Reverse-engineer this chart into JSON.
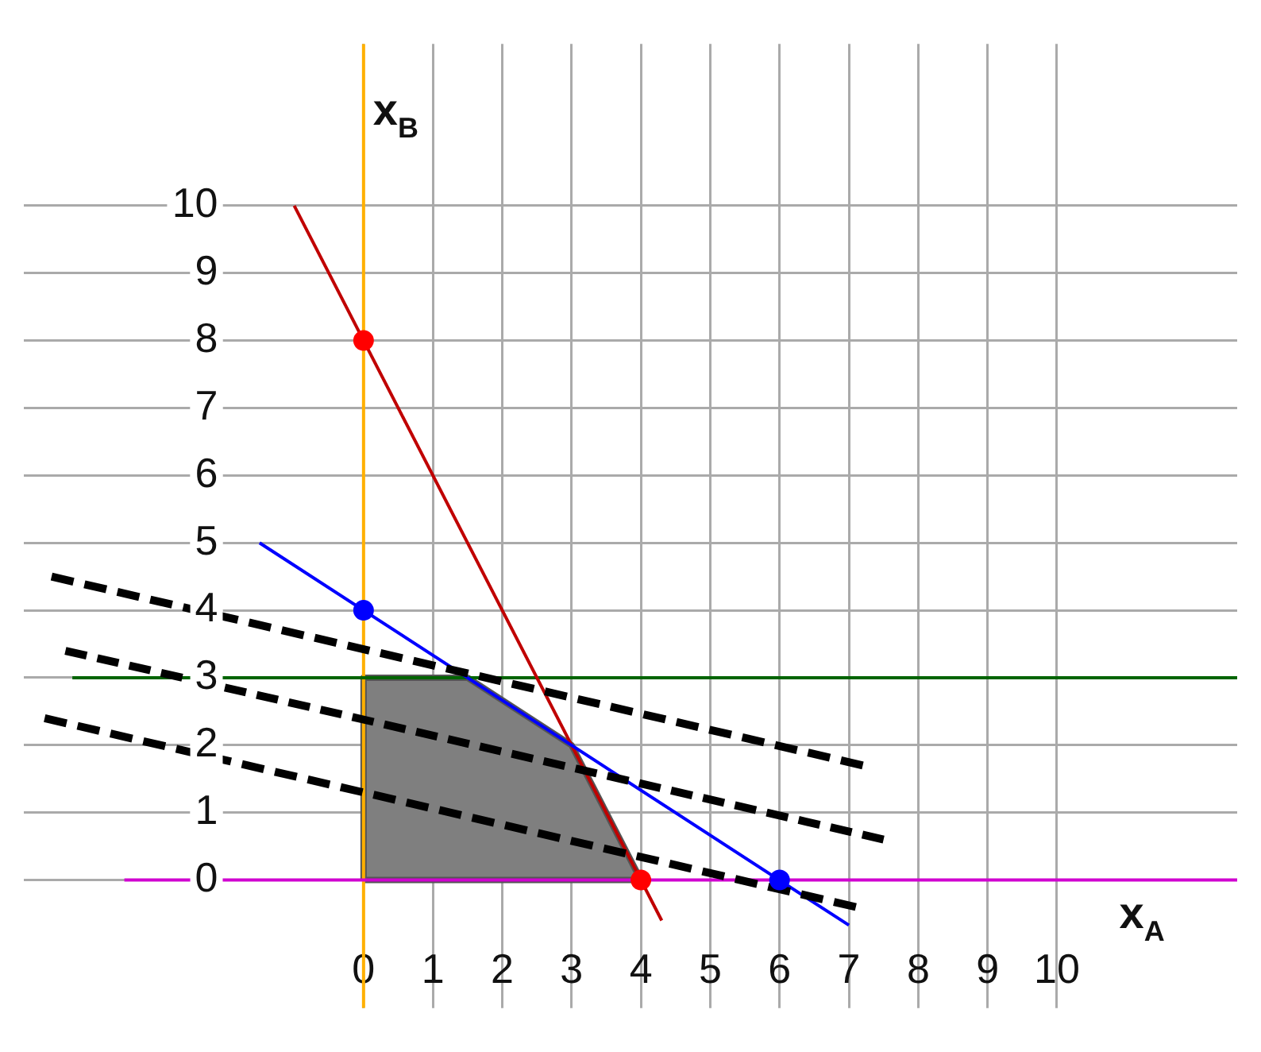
{
  "chart_data": {
    "type": "line",
    "xlabel": "x$_{A}$",
    "ylabel": "x$_{B}$",
    "xlim": [
      -4.9,
      12.6
    ],
    "ylim": [
      -1.9,
      12.4
    ],
    "xticks": [
      0,
      1,
      2,
      3,
      4,
      5,
      6,
      7,
      8,
      9,
      10
    ],
    "yticks": [
      0,
      1,
      2,
      3,
      4,
      5,
      6,
      7,
      8,
      9,
      10
    ],
    "grid": true,
    "legend": false,
    "series": [
      {
        "type": "area",
        "color": "#7f7f7f",
        "x": [
          0,
          0,
          1.5,
          3,
          4,
          0
        ],
        "values": [
          0,
          3,
          3,
          2,
          0,
          0
        ],
        "marker": "none"
      },
      {
        "type": "line",
        "color": "#ffb000",
        "x": [
          0,
          0
        ],
        "values": [
          -1.9,
          12.4
        ],
        "marker": "none",
        "line_style": "solid"
      },
      {
        "type": "line",
        "color": "#d000d0",
        "x": [
          -3.45,
          12.6
        ],
        "values": [
          0,
          0
        ],
        "marker": "none",
        "line_style": "solid"
      },
      {
        "type": "line",
        "color": "#006400",
        "x": [
          -4.2,
          12.6
        ],
        "values": [
          3,
          3
        ],
        "marker": "none",
        "line_style": "solid"
      },
      {
        "type": "line",
        "color": "#c00000",
        "x": [
          -1,
          4.3
        ],
        "values": [
          10,
          -0.6
        ],
        "marker": "none",
        "line_style": "solid"
      },
      {
        "type": "line",
        "color": "#0000ff",
        "x": [
          -1.5,
          7
        ],
        "values": [
          5,
          -0.67
        ],
        "marker": "none",
        "line_style": "solid"
      },
      {
        "type": "line",
        "color": "#000000",
        "x": [
          -4.5,
          7.2
        ],
        "values": [
          4.5,
          1.7
        ],
        "marker": "none",
        "line_style": "dashed"
      },
      {
        "type": "line",
        "color": "#000000",
        "x": [
          -4.3,
          7.5
        ],
        "values": [
          3.4,
          0.6
        ],
        "marker": "none",
        "line_style": "dashed"
      },
      {
        "type": "line",
        "color": "#000000",
        "x": [
          -4.6,
          7.1
        ],
        "values": [
          2.4,
          -0.4
        ],
        "marker": "none",
        "line_style": "dashed"
      },
      {
        "type": "scatter",
        "color": "#ff0000",
        "x": [
          0,
          4
        ],
        "values": [
          8,
          0
        ],
        "marker": "circle"
      },
      {
        "type": "scatter",
        "color": "#0000ff",
        "x": [
          0,
          6
        ],
        "values": [
          4,
          0
        ],
        "marker": "circle"
      }
    ]
  }
}
